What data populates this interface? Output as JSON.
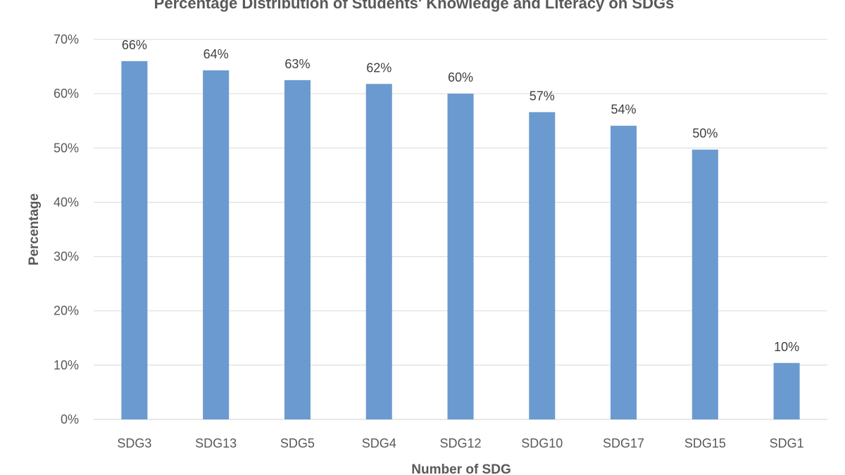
{
  "chart_data": {
    "type": "bar",
    "title": "Percentage Distribution of Students' Knowledge and Literacy on SDGs",
    "xlabel": "Number of SDG",
    "ylabel": "Percentage",
    "ylim": [
      0,
      70
    ],
    "yticks": [
      0,
      10,
      20,
      30,
      40,
      50,
      60,
      70
    ],
    "ytick_labels": [
      "0%",
      "10%",
      "20%",
      "30%",
      "40%",
      "50%",
      "60%",
      "70%"
    ],
    "grid": true,
    "legend": "none",
    "bar_color": "#6a9ad0",
    "categories": [
      "SDG3",
      "SDG13",
      "SDG5",
      "SDG4",
      "SDG12",
      "SDG10",
      "SDG17",
      "SDG15",
      "SDG1"
    ],
    "values": [
      66,
      64.3,
      62.5,
      61.8,
      60,
      56.6,
      54.1,
      49.7,
      10.4
    ],
    "data_labels": [
      "66%",
      "64%",
      "63%",
      "62%",
      "60%",
      "57%",
      "54%",
      "50%",
      "10%"
    ]
  }
}
